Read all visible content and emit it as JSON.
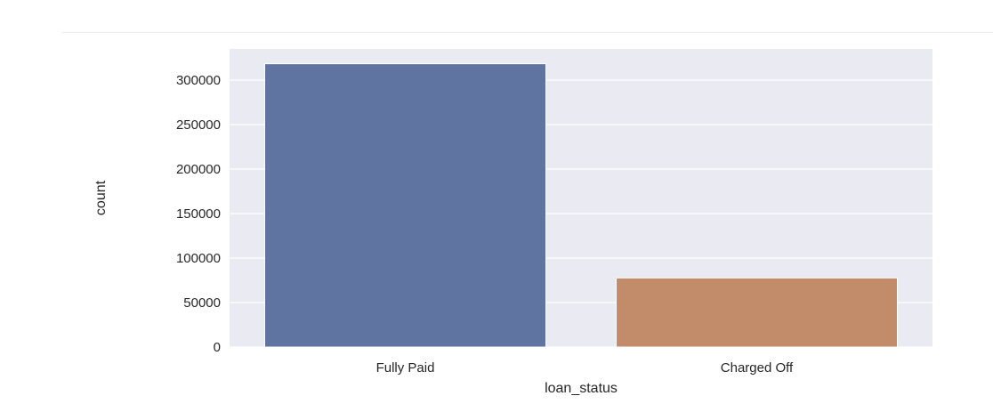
{
  "chart_data": {
    "type": "bar",
    "title": "",
    "xlabel": "loan_status",
    "ylabel": "count",
    "categories": [
      "Fully Paid",
      "Charged Off"
    ],
    "values": [
      318357,
      77673
    ],
    "ylim": [
      0,
      335000
    ],
    "yticks": [
      0,
      50000,
      100000,
      150000,
      200000,
      250000,
      300000
    ],
    "ytick_labels": [
      "0",
      "50000",
      "100000",
      "150000",
      "200000",
      "250000",
      "300000"
    ],
    "grid": true,
    "colors": {
      "background": "#eaeaf2",
      "grid": "#ffffff",
      "bars": [
        "#5f74a0",
        "#c28b69"
      ]
    }
  }
}
